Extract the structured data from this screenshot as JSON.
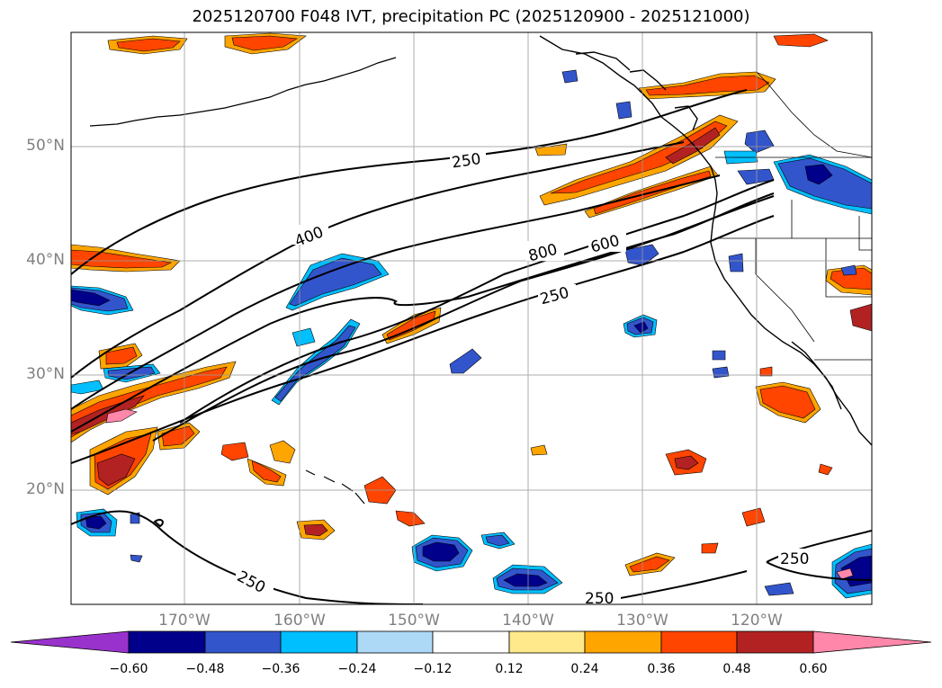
{
  "title": "2025120700 F048 IVT, precipitation PC (2025120900 - 2025121000)",
  "map": {
    "lon_range": [
      -180,
      -110
    ],
    "lat_range": [
      10,
      60
    ],
    "lat_labels": [
      "50°N",
      "40°N",
      "30°N",
      "20°N"
    ],
    "lon_labels": [
      "170°W",
      "160°W",
      "150°W",
      "140°W",
      "130°W",
      "120°W"
    ],
    "grid": true,
    "colors": {
      "neg_strong": "#00008b",
      "neg_mid": "#3355cc",
      "neg_weak": "#00bfff",
      "pos_weak": "#ffa500",
      "pos_mid": "#ff4500",
      "pos_strong": "#b22222",
      "pos_max": "#ff88aa",
      "ivt_contour": "#000000"
    },
    "contour_labels": [
      "250",
      "400",
      "800",
      "600",
      "250",
      "250",
      "250",
      "250"
    ]
  },
  "colorbar": {
    "ticks": [
      "−0.60",
      "−0.48",
      "−0.36",
      "−0.24",
      "−0.12",
      "0.12",
      "0.24",
      "0.36",
      "0.48",
      "0.60"
    ],
    "colors": [
      "#9932cc",
      "#00008b",
      "#3355cc",
      "#00bfff",
      "#add8f6",
      "#ffffff",
      "#ffe98a",
      "#ffa500",
      "#ff4500",
      "#b22222",
      "#ff88aa"
    ],
    "extend": "both"
  }
}
